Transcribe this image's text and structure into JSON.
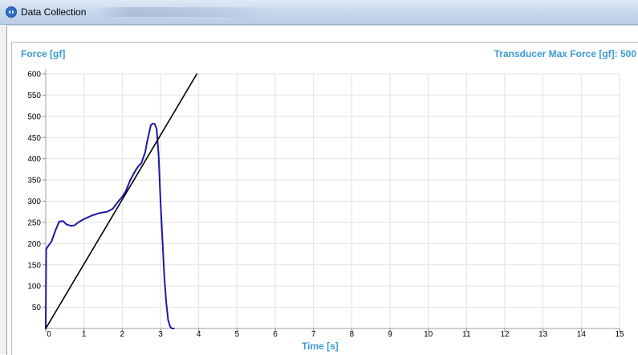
{
  "window": {
    "title": "Data Collection",
    "icon": "app-icon",
    "accent": "#3a9bd5"
  },
  "chart": {
    "top_left_label": "Force [gf]",
    "top_right_label": "Transducer Max Force [gf]: 500"
  },
  "chart_data": {
    "type": "line",
    "title": "",
    "xlabel": "Time [s]",
    "ylabel": "Force [gf]",
    "xlim": [
      0,
      15
    ],
    "ylim": [
      0,
      600
    ],
    "x_ticks": [
      0,
      1,
      2,
      3,
      4,
      5,
      6,
      7,
      8,
      9,
      10,
      11,
      12,
      13,
      14,
      15
    ],
    "y_ticks": [
      50,
      100,
      150,
      200,
      250,
      300,
      350,
      400,
      450,
      500,
      550,
      600
    ],
    "grid": true,
    "legend": "none",
    "series": [
      {
        "color": "#1a1aa0",
        "x": [
          0,
          0.01,
          0.03,
          0.15,
          0.25,
          0.35,
          0.45,
          0.55,
          0.65,
          0.75,
          0.85,
          1.0,
          1.2,
          1.4,
          1.6,
          1.75,
          1.9,
          2.0,
          2.1,
          2.2,
          2.3,
          2.4,
          2.5,
          2.6,
          2.65,
          2.7,
          2.75,
          2.8,
          2.85,
          2.9,
          2.95,
          3.0,
          3.05,
          3.1,
          3.15,
          3.2,
          3.25,
          3.3,
          3.35
        ],
        "y": [
          0,
          185,
          190,
          205,
          230,
          252,
          253,
          245,
          242,
          243,
          250,
          258,
          266,
          272,
          275,
          282,
          300,
          310,
          325,
          348,
          365,
          380,
          390,
          415,
          440,
          460,
          480,
          483,
          482,
          470,
          410,
          300,
          210,
          120,
          60,
          20,
          5,
          0,
          0
        ]
      },
      {
        "color": "#000000",
        "x": [
          0,
          3.95
        ],
        "y": [
          0,
          600
        ]
      }
    ]
  }
}
